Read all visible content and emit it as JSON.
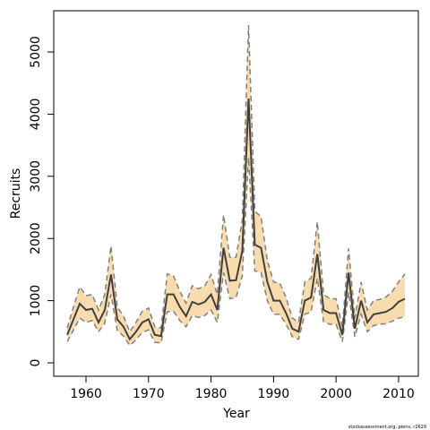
{
  "chart_data": {
    "type": "line",
    "x_label": "Year",
    "y_label": "Recruits",
    "footnote": "stockassessment.org, plens, r2629",
    "x": [
      1957,
      1958,
      1959,
      1960,
      1961,
      1962,
      1963,
      1964,
      1965,
      1966,
      1967,
      1968,
      1969,
      1970,
      1971,
      1972,
      1973,
      1974,
      1975,
      1976,
      1977,
      1978,
      1979,
      1980,
      1981,
      1982,
      1983,
      1984,
      1985,
      1986,
      1987,
      1988,
      1989,
      1990,
      1991,
      1992,
      1993,
      1994,
      1995,
      1996,
      1997,
      1998,
      1999,
      2000,
      2001,
      2002,
      2003,
      2004,
      2005,
      2006,
      2007,
      2008,
      2009,
      2010,
      2011
    ],
    "values": [
      450,
      700,
      950,
      850,
      870,
      650,
      850,
      1420,
      700,
      580,
      380,
      500,
      650,
      700,
      450,
      430,
      1100,
      1100,
      900,
      750,
      980,
      940,
      980,
      1100,
      850,
      1850,
      1320,
      1330,
      1800,
      4250,
      1900,
      1850,
      1300,
      1000,
      1000,
      800,
      550,
      500,
      1000,
      1050,
      1750,
      850,
      800,
      800,
      450,
      1450,
      550,
      1000,
      650,
      780,
      800,
      820,
      880,
      980,
      1030
    ],
    "lower": [
      340,
      530,
      720,
      650,
      680,
      500,
      640,
      1100,
      520,
      430,
      280,
      370,
      490,
      530,
      330,
      320,
      820,
      830,
      680,
      580,
      760,
      730,
      760,
      850,
      650,
      1450,
      1030,
      1050,
      1400,
      3300,
      1480,
      1450,
      1000,
      780,
      780,
      620,
      420,
      380,
      780,
      820,
      1360,
      660,
      620,
      620,
      340,
      1130,
      420,
      780,
      500,
      600,
      620,
      630,
      670,
      720,
      740
    ],
    "upper": [
      560,
      900,
      1220,
      1080,
      1100,
      850,
      1100,
      1880,
      900,
      750,
      500,
      650,
      830,
      880,
      580,
      560,
      1430,
      1400,
      1150,
      960,
      1240,
      1190,
      1240,
      1420,
      1100,
      2380,
      1700,
      1700,
      2300,
      5430,
      2440,
      2350,
      1650,
      1300,
      1280,
      1050,
      720,
      650,
      1300,
      1360,
      2270,
      1100,
      1030,
      1030,
      580,
      1840,
      720,
      1300,
      850,
      1000,
      1020,
      1060,
      1150,
      1300,
      1430
    ],
    "line_color": "#404040",
    "band_color": "#f8dcae",
    "band_edge_color": "#808080",
    "xlim": [
      1954.84,
      2013.16
    ],
    "ylim": [
      -216,
      5663
    ],
    "xticks": [
      1960,
      1970,
      1980,
      1990,
      2000,
      2010
    ],
    "yticks": [
      0,
      1000,
      2000,
      3000,
      4000,
      5000
    ]
  }
}
